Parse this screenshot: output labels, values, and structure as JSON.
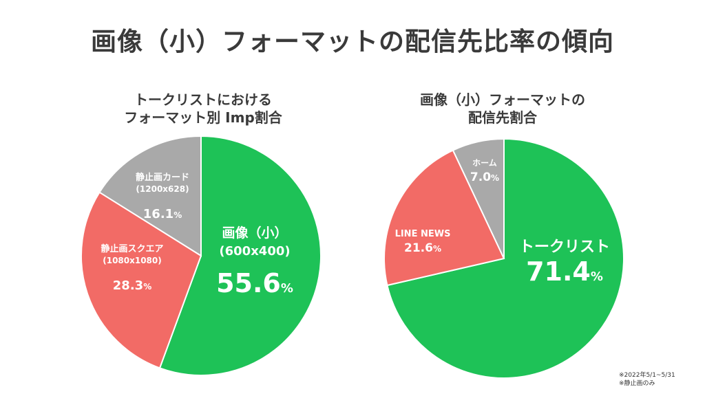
{
  "title": "画像（小）フォーマットの配信先比率の傾向",
  "chart_data": [
    {
      "type": "pie",
      "title_lines": [
        "トークリストにおける",
        "フォーマット別 Imp割合"
      ],
      "slices": [
        {
          "label_lines": [
            "画像（小）",
            "(600x400)"
          ],
          "value": 55.6,
          "value_text": "55.6",
          "color": "#1ec257",
          "label_color": "#ffffff"
        },
        {
          "label_lines": [
            "静止画スクエア",
            "(1080x1080)"
          ],
          "value": 28.3,
          "value_text": "28.3",
          "color": "#f26b66",
          "label_color": "#ffffff"
        },
        {
          "label_lines": [
            "静止画カード",
            "(1200x628)"
          ],
          "value": 16.1,
          "value_text": "16.1",
          "color": "#a9a9a9",
          "label_color": "#ffffff"
        }
      ],
      "unit": "%"
    },
    {
      "type": "pie",
      "title_lines": [
        "画像（小）フォーマットの",
        "配信先割合"
      ],
      "slices": [
        {
          "label_lines": [
            "トークリスト"
          ],
          "value": 71.4,
          "value_text": "71.4",
          "color": "#1ec257",
          "label_color": "#ffffff"
        },
        {
          "label_lines": [
            "LINE NEWS"
          ],
          "value": 21.6,
          "value_text": "21.6",
          "color": "#f26b66",
          "label_color": "#ffffff"
        },
        {
          "label_lines": [
            "ホーム"
          ],
          "value": 7.0,
          "value_text": "7.0",
          "color": "#a9a9a9",
          "label_color": "#ffffff"
        }
      ],
      "unit": "%"
    }
  ],
  "footnote": [
    "※2022年5/1~5/31",
    "※静止画のみ"
  ]
}
